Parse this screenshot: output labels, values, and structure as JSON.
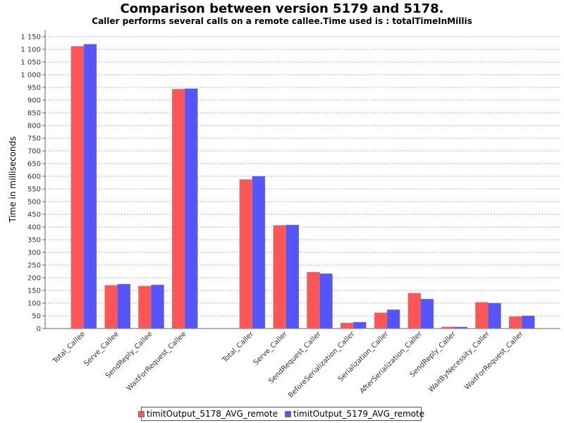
{
  "chart_data": {
    "type": "bar",
    "title": "Comparison between version 5179 and 5178.",
    "subtitle": "Caller performs several calls on a remote callee.Time used is : totalTimeInMillis",
    "xlabel": "",
    "ylabel": "Time in milliseconds",
    "ylim": [
      0,
      1175
    ],
    "ytick_step": 50,
    "yticks": [
      "0",
      "50",
      "100",
      "150",
      "200",
      "250",
      "300",
      "350",
      "400",
      "450",
      "500",
      "550",
      "600",
      "650",
      "700",
      "750",
      "800",
      "850",
      "900",
      "950",
      "1 000",
      "1 050",
      "1 100",
      "1 150"
    ],
    "grid": true,
    "legend_position": "bottom",
    "groups": [
      {
        "categories": [
          "Total_Callee",
          "Serve_Callee",
          "SendReply_Callee",
          "WaitForRequest_Callee"
        ]
      },
      {
        "categories": [
          "Total_Caller",
          "Serve_Caller",
          "SendRequest_Caller",
          "BeforeSerialization_Caller",
          "Serialization_Caller",
          "AfterSerialization_Caller",
          "SendReply_Caller",
          "WaitByNecessity_Caller",
          "WaitForRequest_Caller"
        ]
      }
    ],
    "categories": [
      "Total_Callee",
      "Serve_Callee",
      "SendReply_Callee",
      "WaitForRequest_Callee",
      "Total_Caller",
      "Serve_Caller",
      "SendRequest_Caller",
      "BeforeSerialization_Caller",
      "Serialization_Caller",
      "AfterSerialization_Caller",
      "SendReply_Caller",
      "WaitByNecessity_Caller",
      "WaitForRequest_Caller"
    ],
    "series": [
      {
        "name": "timitOutput_5178_AVG_remote",
        "color": "#ff5555",
        "values": [
          1112,
          170,
          167,
          943,
          587,
          406,
          222,
          22,
          62,
          139,
          6,
          103,
          47
        ]
      },
      {
        "name": "timitOutput_5179_AVG_remote",
        "color": "#5555ff",
        "values": [
          1120,
          175,
          172,
          945,
          600,
          408,
          216,
          25,
          74,
          116,
          6,
          100,
          50
        ]
      }
    ]
  }
}
